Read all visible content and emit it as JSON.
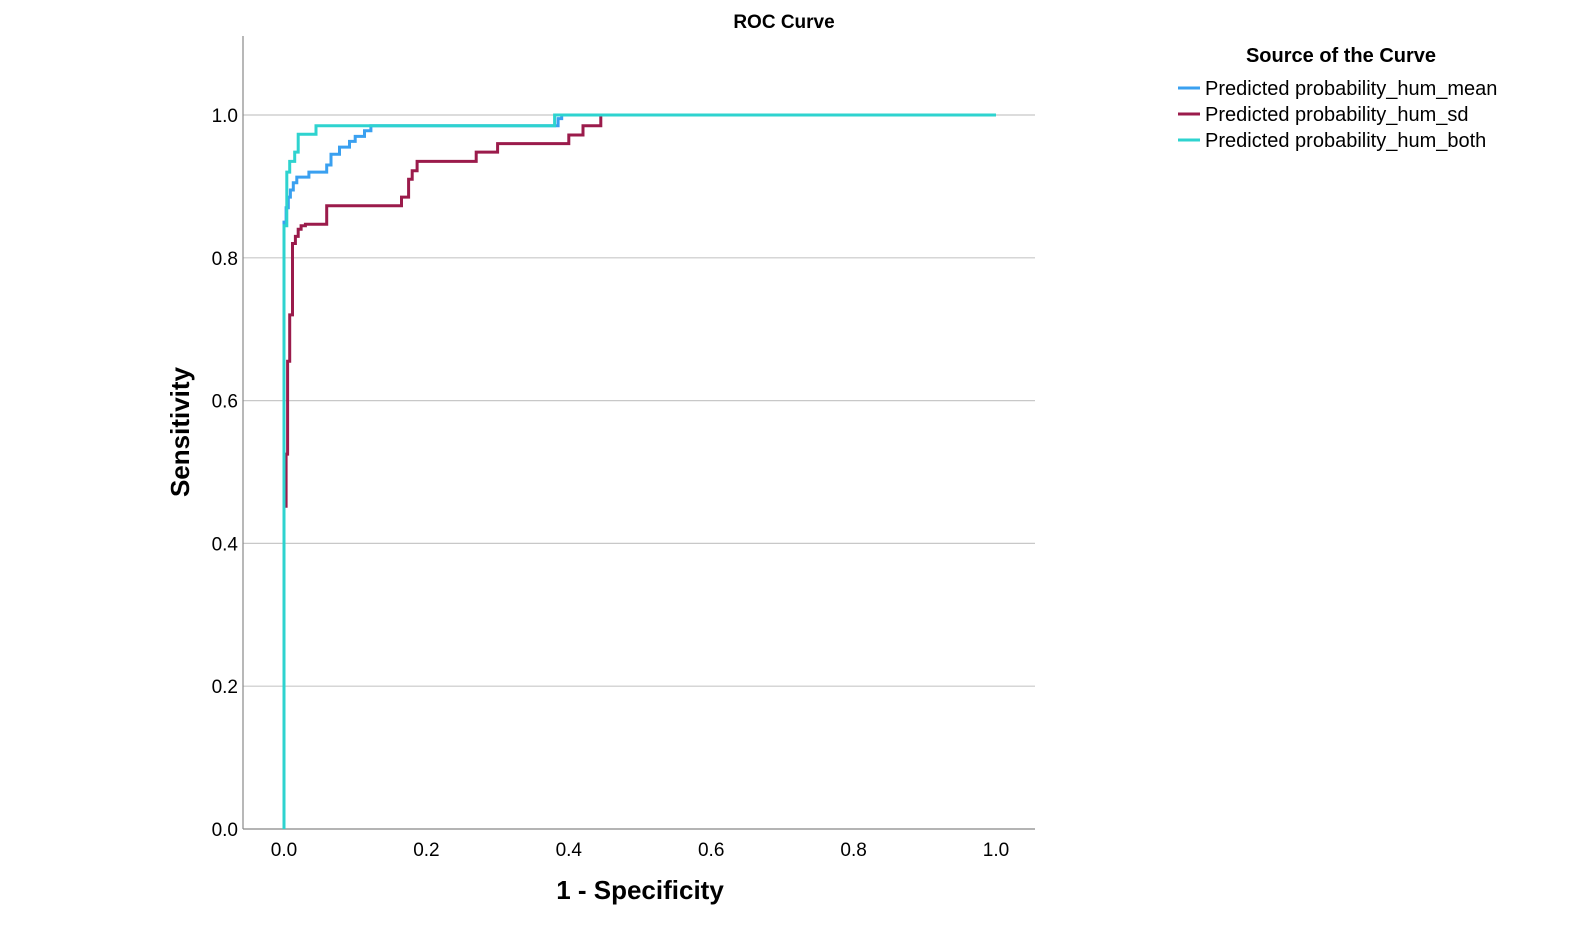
{
  "chart_data": {
    "type": "line",
    "title": "ROC Curve",
    "xlabel": "1 - Specificity",
    "ylabel": "Sensitivity",
    "xlim": [
      0,
      1
    ],
    "ylim": [
      0,
      1.1
    ],
    "xticks": [
      0.0,
      0.2,
      0.4,
      0.6,
      0.8,
      1.0
    ],
    "yticks": [
      0.0,
      0.2,
      0.4,
      0.6,
      0.8,
      1.0
    ],
    "xtick_labels": [
      "0.0",
      "0.2",
      "0.4",
      "0.6",
      "0.8",
      "1.0"
    ],
    "ytick_labels": [
      "0.0",
      "0.2",
      "0.4",
      "0.6",
      "0.8",
      "1.0"
    ],
    "grid": "horizontal",
    "legend": {
      "title": "Source of the Curve",
      "placement": "top-right outside"
    },
    "series": [
      {
        "name": "Predicted probability_hum_mean",
        "color": "#3AA0F0",
        "x": [
          0.0,
          0.0,
          0.003,
          0.003,
          0.006,
          0.006,
          0.009,
          0.009,
          0.013,
          0.013,
          0.018,
          0.018,
          0.035,
          0.035,
          0.06,
          0.06,
          0.066,
          0.066,
          0.078,
          0.078,
          0.092,
          0.092,
          0.1,
          0.1,
          0.113,
          0.113,
          0.122,
          0.122,
          0.385,
          0.385,
          0.39,
          0.39,
          1.0
        ],
        "y": [
          0.0,
          0.85,
          0.85,
          0.87,
          0.87,
          0.885,
          0.885,
          0.895,
          0.895,
          0.905,
          0.905,
          0.913,
          0.913,
          0.92,
          0.92,
          0.93,
          0.93,
          0.945,
          0.945,
          0.955,
          0.955,
          0.963,
          0.963,
          0.97,
          0.97,
          0.978,
          0.978,
          0.985,
          0.985,
          0.995,
          0.995,
          1.0,
          1.0
        ]
      },
      {
        "name": "Predicted probability_hum_sd",
        "color": "#9B1B4B",
        "x": [
          0.003,
          0.003,
          0.005,
          0.005,
          0.008,
          0.008,
          0.012,
          0.012,
          0.016,
          0.016,
          0.02,
          0.02,
          0.024,
          0.024,
          0.03,
          0.03,
          0.06,
          0.06,
          0.165,
          0.165,
          0.175,
          0.175,
          0.18,
          0.18,
          0.187,
          0.187,
          0.27,
          0.27,
          0.3,
          0.3,
          0.4,
          0.4,
          0.42,
          0.42,
          0.445,
          0.445,
          1.0
        ],
        "y": [
          0.45,
          0.525,
          0.525,
          0.655,
          0.655,
          0.72,
          0.72,
          0.82,
          0.82,
          0.83,
          0.83,
          0.84,
          0.84,
          0.845,
          0.845,
          0.847,
          0.847,
          0.873,
          0.873,
          0.885,
          0.885,
          0.91,
          0.91,
          0.922,
          0.922,
          0.935,
          0.935,
          0.948,
          0.948,
          0.96,
          0.96,
          0.972,
          0.972,
          0.985,
          0.985,
          1.0,
          1.0
        ]
      },
      {
        "name": "Predicted probability_hum_both",
        "color": "#2ED3CF",
        "x": [
          0.0,
          0.0,
          0.004,
          0.004,
          0.008,
          0.008,
          0.015,
          0.015,
          0.02,
          0.02,
          0.045,
          0.045,
          0.38,
          0.38,
          1.0
        ],
        "y": [
          0.0,
          0.845,
          0.845,
          0.92,
          0.92,
          0.935,
          0.935,
          0.948,
          0.948,
          0.973,
          0.973,
          0.985,
          0.985,
          1.0,
          1.0
        ]
      }
    ]
  }
}
